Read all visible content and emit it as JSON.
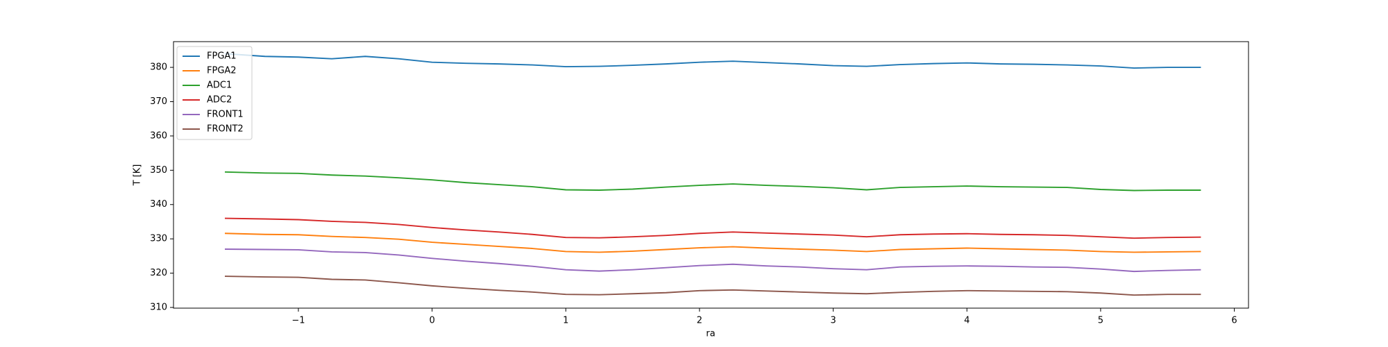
{
  "chart_data": {
    "type": "line",
    "x": [
      -1.55,
      -1.25,
      -1,
      -0.75,
      -0.5,
      -0.25,
      0,
      0.25,
      0.5,
      0.75,
      1,
      1.25,
      1.5,
      1.75,
      2,
      2.25,
      2.5,
      2.75,
      3,
      3.25,
      3.5,
      3.75,
      4,
      4.25,
      4.5,
      4.75,
      5,
      5.25,
      5.5,
      5.75
    ],
    "series": [
      {
        "name": "FPGA1",
        "color": "#1f77b4",
        "values": [
          384,
          383.2,
          383,
          382.5,
          383.2,
          382.5,
          381.5,
          381.2,
          381,
          380.7,
          380.2,
          380.3,
          380.6,
          381,
          381.5,
          381.8,
          381.4,
          381,
          380.5,
          380.3,
          380.8,
          381.1,
          381.3,
          381,
          380.9,
          380.7,
          380.4,
          379.8,
          380,
          380
        ]
      },
      {
        "name": "FPGA2",
        "color": "#ff7f0e",
        "values": [
          331.6,
          331.3,
          331.2,
          330.7,
          330.4,
          329.9,
          329,
          328.4,
          327.8,
          327.2,
          326.3,
          326.1,
          326.4,
          326.9,
          327.4,
          327.7,
          327.3,
          327,
          326.7,
          326.3,
          326.9,
          327.1,
          327.3,
          327.1,
          326.9,
          326.7,
          326.3,
          326.1,
          326.2,
          326.3
        ]
      },
      {
        "name": "ADC1",
        "color": "#2ca02c",
        "values": [
          349.5,
          349.2,
          349.1,
          348.6,
          348.3,
          347.8,
          347.2,
          346.4,
          345.8,
          345.2,
          344.3,
          344.2,
          344.5,
          345.1,
          345.6,
          346,
          345.6,
          345.3,
          344.9,
          344.3,
          345,
          345.2,
          345.4,
          345.2,
          345.1,
          345,
          344.4,
          344.1,
          344.2,
          344.2
        ]
      },
      {
        "name": "ADC2",
        "color": "#d62728",
        "values": [
          336,
          335.8,
          335.6,
          335.1,
          334.8,
          334.2,
          333.3,
          332.6,
          332,
          331.3,
          330.4,
          330.3,
          330.6,
          331,
          331.6,
          332,
          331.7,
          331.4,
          331.1,
          330.6,
          331.2,
          331.4,
          331.5,
          331.3,
          331.2,
          331,
          330.6,
          330.2,
          330.4,
          330.5
        ]
      },
      {
        "name": "FRONT1",
        "color": "#9467bd",
        "values": [
          327,
          326.9,
          326.8,
          326.2,
          326,
          325.3,
          324.3,
          323.5,
          322.8,
          322,
          321,
          320.6,
          321,
          321.6,
          322.2,
          322.6,
          322.1,
          321.8,
          321.3,
          321,
          321.8,
          322,
          322.1,
          322,
          321.8,
          321.7,
          321.2,
          320.5,
          320.8,
          321
        ]
      },
      {
        "name": "FRONT2",
        "color": "#8c564b",
        "values": [
          319.1,
          318.9,
          318.8,
          318.2,
          318,
          317.2,
          316.3,
          315.6,
          315,
          314.5,
          313.8,
          313.7,
          314,
          314.3,
          314.9,
          315.1,
          314.8,
          314.5,
          314.2,
          314,
          314.4,
          314.7,
          314.9,
          314.8,
          314.7,
          314.6,
          314.2,
          313.6,
          313.8,
          313.8
        ]
      }
    ],
    "xlabel": "ra",
    "ylabel": "T [K]",
    "xlim": [
      -1.934,
      6.106
    ],
    "ylim": [
      309.8,
      387.5
    ],
    "xticks": [
      {
        "value": -1,
        "label": "−1"
      },
      0,
      1,
      2,
      3,
      4,
      5,
      6
    ],
    "yticks": [
      310,
      320,
      330,
      340,
      350,
      360,
      370,
      380
    ],
    "legend": "upper left"
  }
}
